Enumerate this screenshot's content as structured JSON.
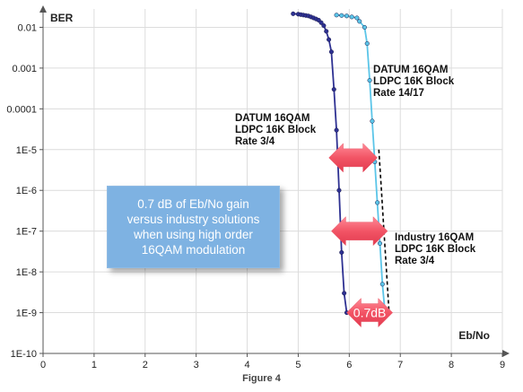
{
  "chart_data": {
    "type": "line",
    "ylabel": "BER",
    "xlabel": "Eb/No",
    "xlim": [
      0,
      9
    ],
    "ylim_exponent": [
      -10,
      -1.55
    ],
    "yscale": "log",
    "grid": true,
    "x_ticks": [
      "0",
      "1",
      "2",
      "3",
      "4",
      "5",
      "6",
      "7",
      "8",
      "9"
    ],
    "y_ticks": [
      {
        "exp": -2,
        "label": "0.01"
      },
      {
        "exp": -3,
        "label": "0.001"
      },
      {
        "exp": -4,
        "label": "0.0001"
      },
      {
        "exp": -5,
        "label": "1E-5"
      },
      {
        "exp": -6,
        "label": "1E-6"
      },
      {
        "exp": -7,
        "label": "1E-7"
      },
      {
        "exp": -8,
        "label": "1E-8"
      },
      {
        "exp": -9,
        "label": "1E-9"
      },
      {
        "exp": -10,
        "label": "1E-10"
      }
    ],
    "series": [
      {
        "name": "DATUM 16QAM LDPC 16K Block Rate 3/4",
        "label_lines": [
          "DATUM 16QAM",
          "LDPC 16K Block",
          "Rate 3/4"
        ],
        "color": "#2e3192",
        "points": [
          [
            4.9,
            0.0215
          ],
          [
            5.0,
            0.021
          ],
          [
            5.05,
            0.0205
          ],
          [
            5.1,
            0.02
          ],
          [
            5.15,
            0.0195
          ],
          [
            5.2,
            0.019
          ],
          [
            5.25,
            0.018
          ],
          [
            5.3,
            0.017
          ],
          [
            5.35,
            0.016
          ],
          [
            5.4,
            0.015
          ],
          [
            5.45,
            0.013
          ],
          [
            5.5,
            0.011
          ],
          [
            5.55,
            0.008
          ],
          [
            5.6,
            0.005
          ],
          [
            5.65,
            0.0025
          ],
          [
            5.7,
            0.0003
          ],
          [
            5.75,
            3e-05
          ],
          [
            5.8,
            1e-06
          ],
          [
            5.85,
            3e-08
          ],
          [
            5.9,
            3e-09
          ],
          [
            5.95,
            1e-09
          ]
        ]
      },
      {
        "name": "DATUM 16QAM LDPC 16K Block Rate 14/17",
        "label_lines": [
          "DATUM 16QAM",
          "LDPC 16K Block",
          "Rate 14/17"
        ],
        "color": "#5bc5e8",
        "points": [
          [
            5.75,
            0.02
          ],
          [
            5.85,
            0.0195
          ],
          [
            5.95,
            0.019
          ],
          [
            6.05,
            0.018
          ],
          [
            6.15,
            0.017
          ],
          [
            6.2,
            0.014
          ],
          [
            6.3,
            0.01
          ],
          [
            6.35,
            0.004
          ],
          [
            6.4,
            0.0005
          ],
          [
            6.45,
            5e-05
          ],
          [
            6.5,
            5e-06
          ],
          [
            6.55,
            5e-07
          ],
          [
            6.6,
            5e-08
          ],
          [
            6.65,
            5e-09
          ],
          [
            6.7,
            1e-09
          ]
        ]
      },
      {
        "name": "Industry 16QAM LDPC 16K Block Rate 3/4",
        "label_lines": [
          "Industry 16QAM",
          "LDPC 16K Block",
          "Rate 3/4"
        ],
        "color": "#000000",
        "dashed": true,
        "points": [
          [
            6.58,
            1e-05
          ],
          [
            6.63,
            1e-06
          ],
          [
            6.68,
            1e-07
          ],
          [
            6.73,
            1e-08
          ],
          [
            6.78,
            1e-09
          ]
        ]
      }
    ],
    "arrows": [
      {
        "exp": -5.2,
        "x_from": 5.6,
        "x_to": 6.55
      },
      {
        "exp": -7.0,
        "x_from": 5.65,
        "x_to": 6.75
      },
      {
        "exp": -9.0,
        "x_from": 5.95,
        "x_to": 6.85,
        "label": "0.7dB"
      }
    ],
    "callout": {
      "lines": [
        "0.7 dB of Eb/No gain",
        "versus industry solutions",
        "when using high order",
        "16QAM modulation"
      ]
    },
    "caption": "Figure 4"
  }
}
